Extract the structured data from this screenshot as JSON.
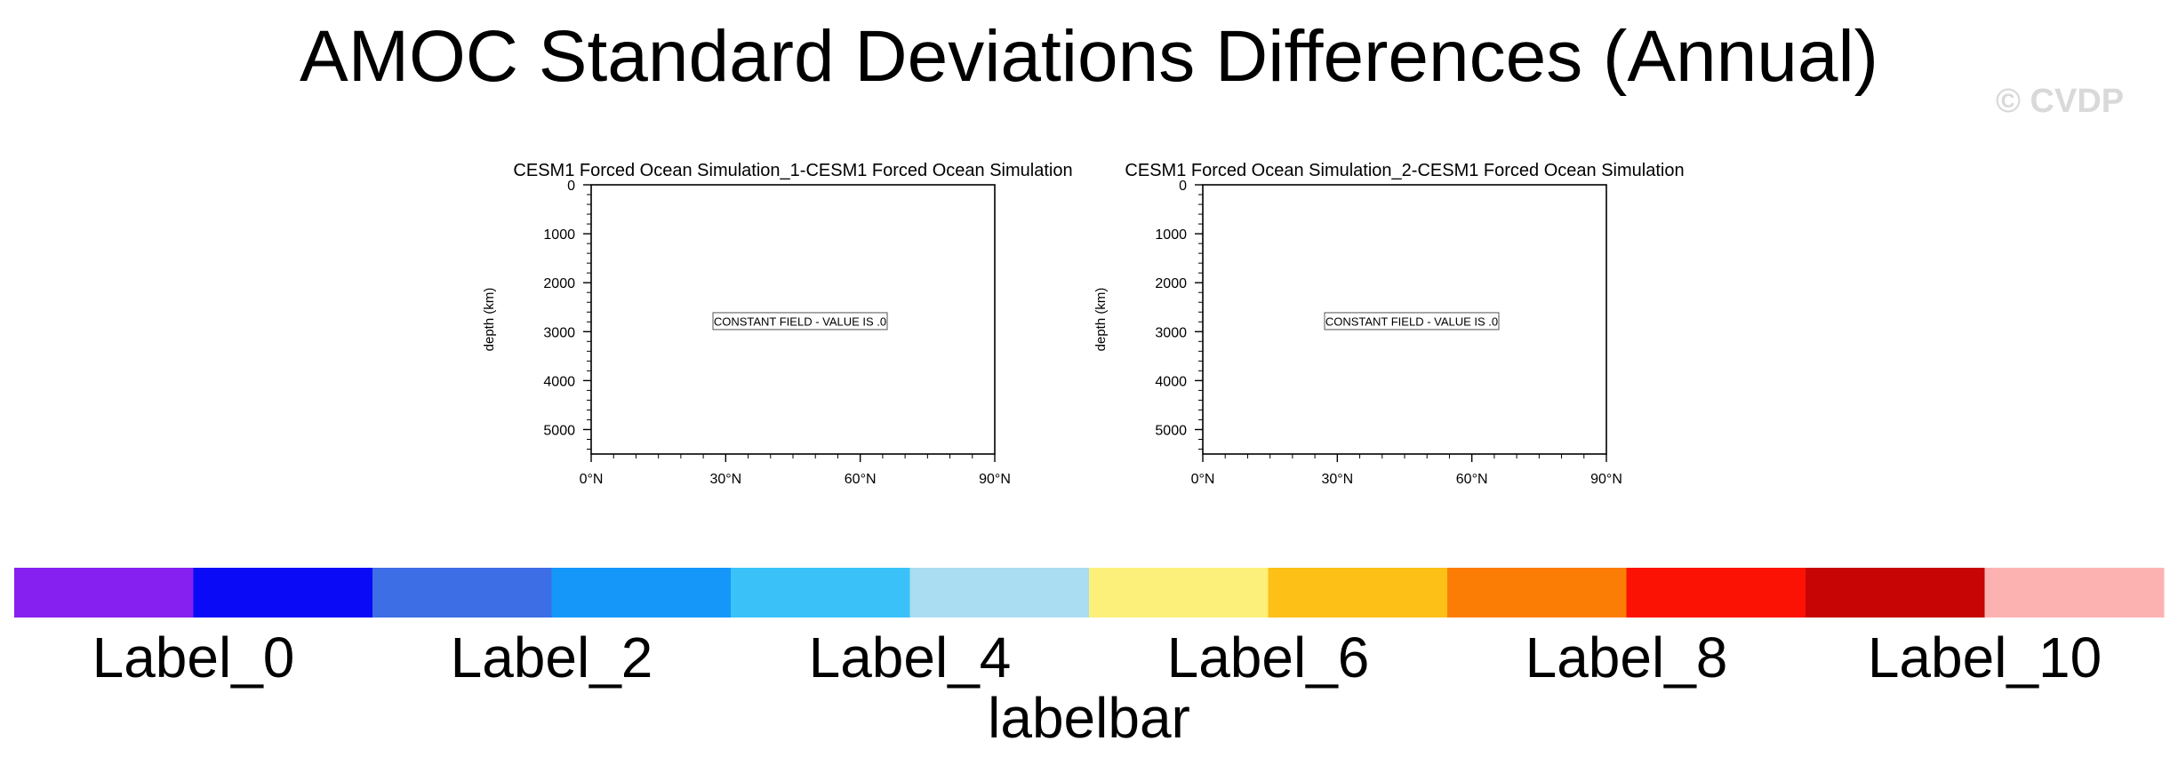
{
  "title": "AMOC Standard Deviations Differences (Annual)",
  "watermark": "© CVDP",
  "chart_data": [
    {
      "type": "heatmap",
      "title": "CESM1 Forced Ocean Simulation_1-CESM1 Forced Ocean Simulation",
      "xlabel": "",
      "ylabel": "depth (km)",
      "x_ticks": [
        "0°N",
        "30°N",
        "60°N",
        "90°N"
      ],
      "xlim": [
        0,
        90
      ],
      "y_ticks": [
        "0",
        "1000",
        "2000",
        "3000",
        "4000",
        "5000"
      ],
      "ylim": [
        0,
        5500
      ],
      "y_reversed": true,
      "annotation": "CONSTANT FIELD - VALUE IS .0"
    },
    {
      "type": "heatmap",
      "title": "CESM1 Forced Ocean Simulation_2-CESM1 Forced Ocean Simulation",
      "xlabel": "",
      "ylabel": "depth (km)",
      "x_ticks": [
        "0°N",
        "30°N",
        "60°N",
        "90°N"
      ],
      "xlim": [
        0,
        90
      ],
      "y_ticks": [
        "0",
        "1000",
        "2000",
        "3000",
        "4000",
        "5000"
      ],
      "ylim": [
        0,
        5500
      ],
      "y_reversed": true,
      "annotation": "CONSTANT FIELD - VALUE IS .0"
    }
  ],
  "labelbar": {
    "title": "labelbar",
    "colors": [
      "#8520f0",
      "#0a0af7",
      "#3d6ee6",
      "#1597fa",
      "#3ac2f8",
      "#aadcf2",
      "#fdf07a",
      "#fcc017",
      "#fc7d05",
      "#fc1205",
      "#c70505",
      "#fdb2b2"
    ],
    "labels": [
      "Label_0",
      "Label_2",
      "Label_4",
      "Label_6",
      "Label_8",
      "Label_10"
    ]
  }
}
